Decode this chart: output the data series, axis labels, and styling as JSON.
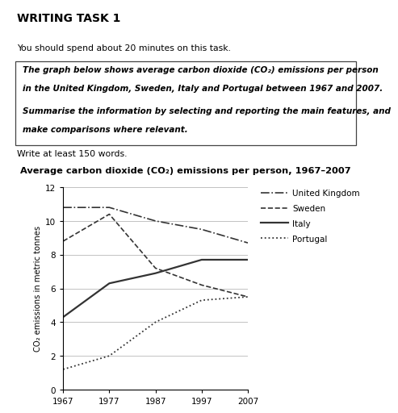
{
  "title": "Average carbon dioxide (CO₂) emissions per person, 1967–2007",
  "ylabel": "CO₂ emissions in metric tonnes",
  "years": [
    1967,
    1977,
    1987,
    1997,
    2007
  ],
  "uk": [
    10.8,
    10.8,
    10.0,
    9.5,
    8.7
  ],
  "sweden": [
    8.8,
    10.4,
    7.2,
    6.2,
    5.5
  ],
  "italy": [
    4.3,
    6.3,
    6.9,
    7.7,
    7.7
  ],
  "portugal": [
    1.2,
    2.0,
    4.0,
    5.3,
    5.5
  ],
  "ylim": [
    0,
    12
  ],
  "yticks": [
    0,
    2,
    4,
    6,
    8,
    10,
    12
  ],
  "xticks": [
    1967,
    1977,
    1987,
    1997,
    2007
  ],
  "line_color": "#333333",
  "bg_color": "#ffffff",
  "header_title": "WRITING TASK 1",
  "header_sub": "You should spend about 20 minutes on this task.",
  "box_line1": "The graph below shows average carbon dioxide (CO₂) emissions per person",
  "box_line2": "in the United Kingdom, Sweden, Italy and Portugal between 1967 and 2007.",
  "box_line3": "Summarise the information by selecting and reporting the main features, and",
  "box_line4": "make comparisons where relevant.",
  "footer_text": "Write at least 150 words.",
  "legend_labels": [
    "United Kingdom",
    "Sweden",
    "Italy",
    "Portugal"
  ]
}
